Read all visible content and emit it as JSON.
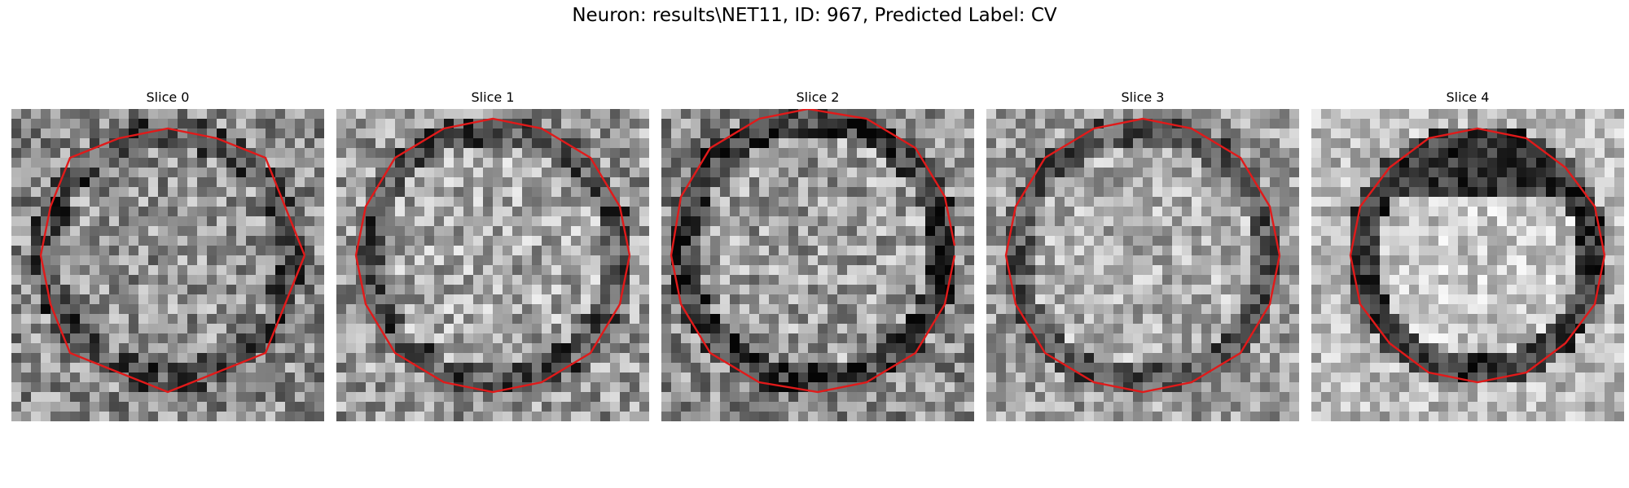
{
  "figure": {
    "title": "Neuron: results\\NET11, ID: 967, Predicted Label: CV",
    "contour_color": "#e11a1a",
    "slices": [
      {
        "label": "Slice 0"
      },
      {
        "label": "Slice 1"
      },
      {
        "label": "Slice 2"
      },
      {
        "label": "Slice 3"
      },
      {
        "label": "Slice 4"
      }
    ]
  }
}
